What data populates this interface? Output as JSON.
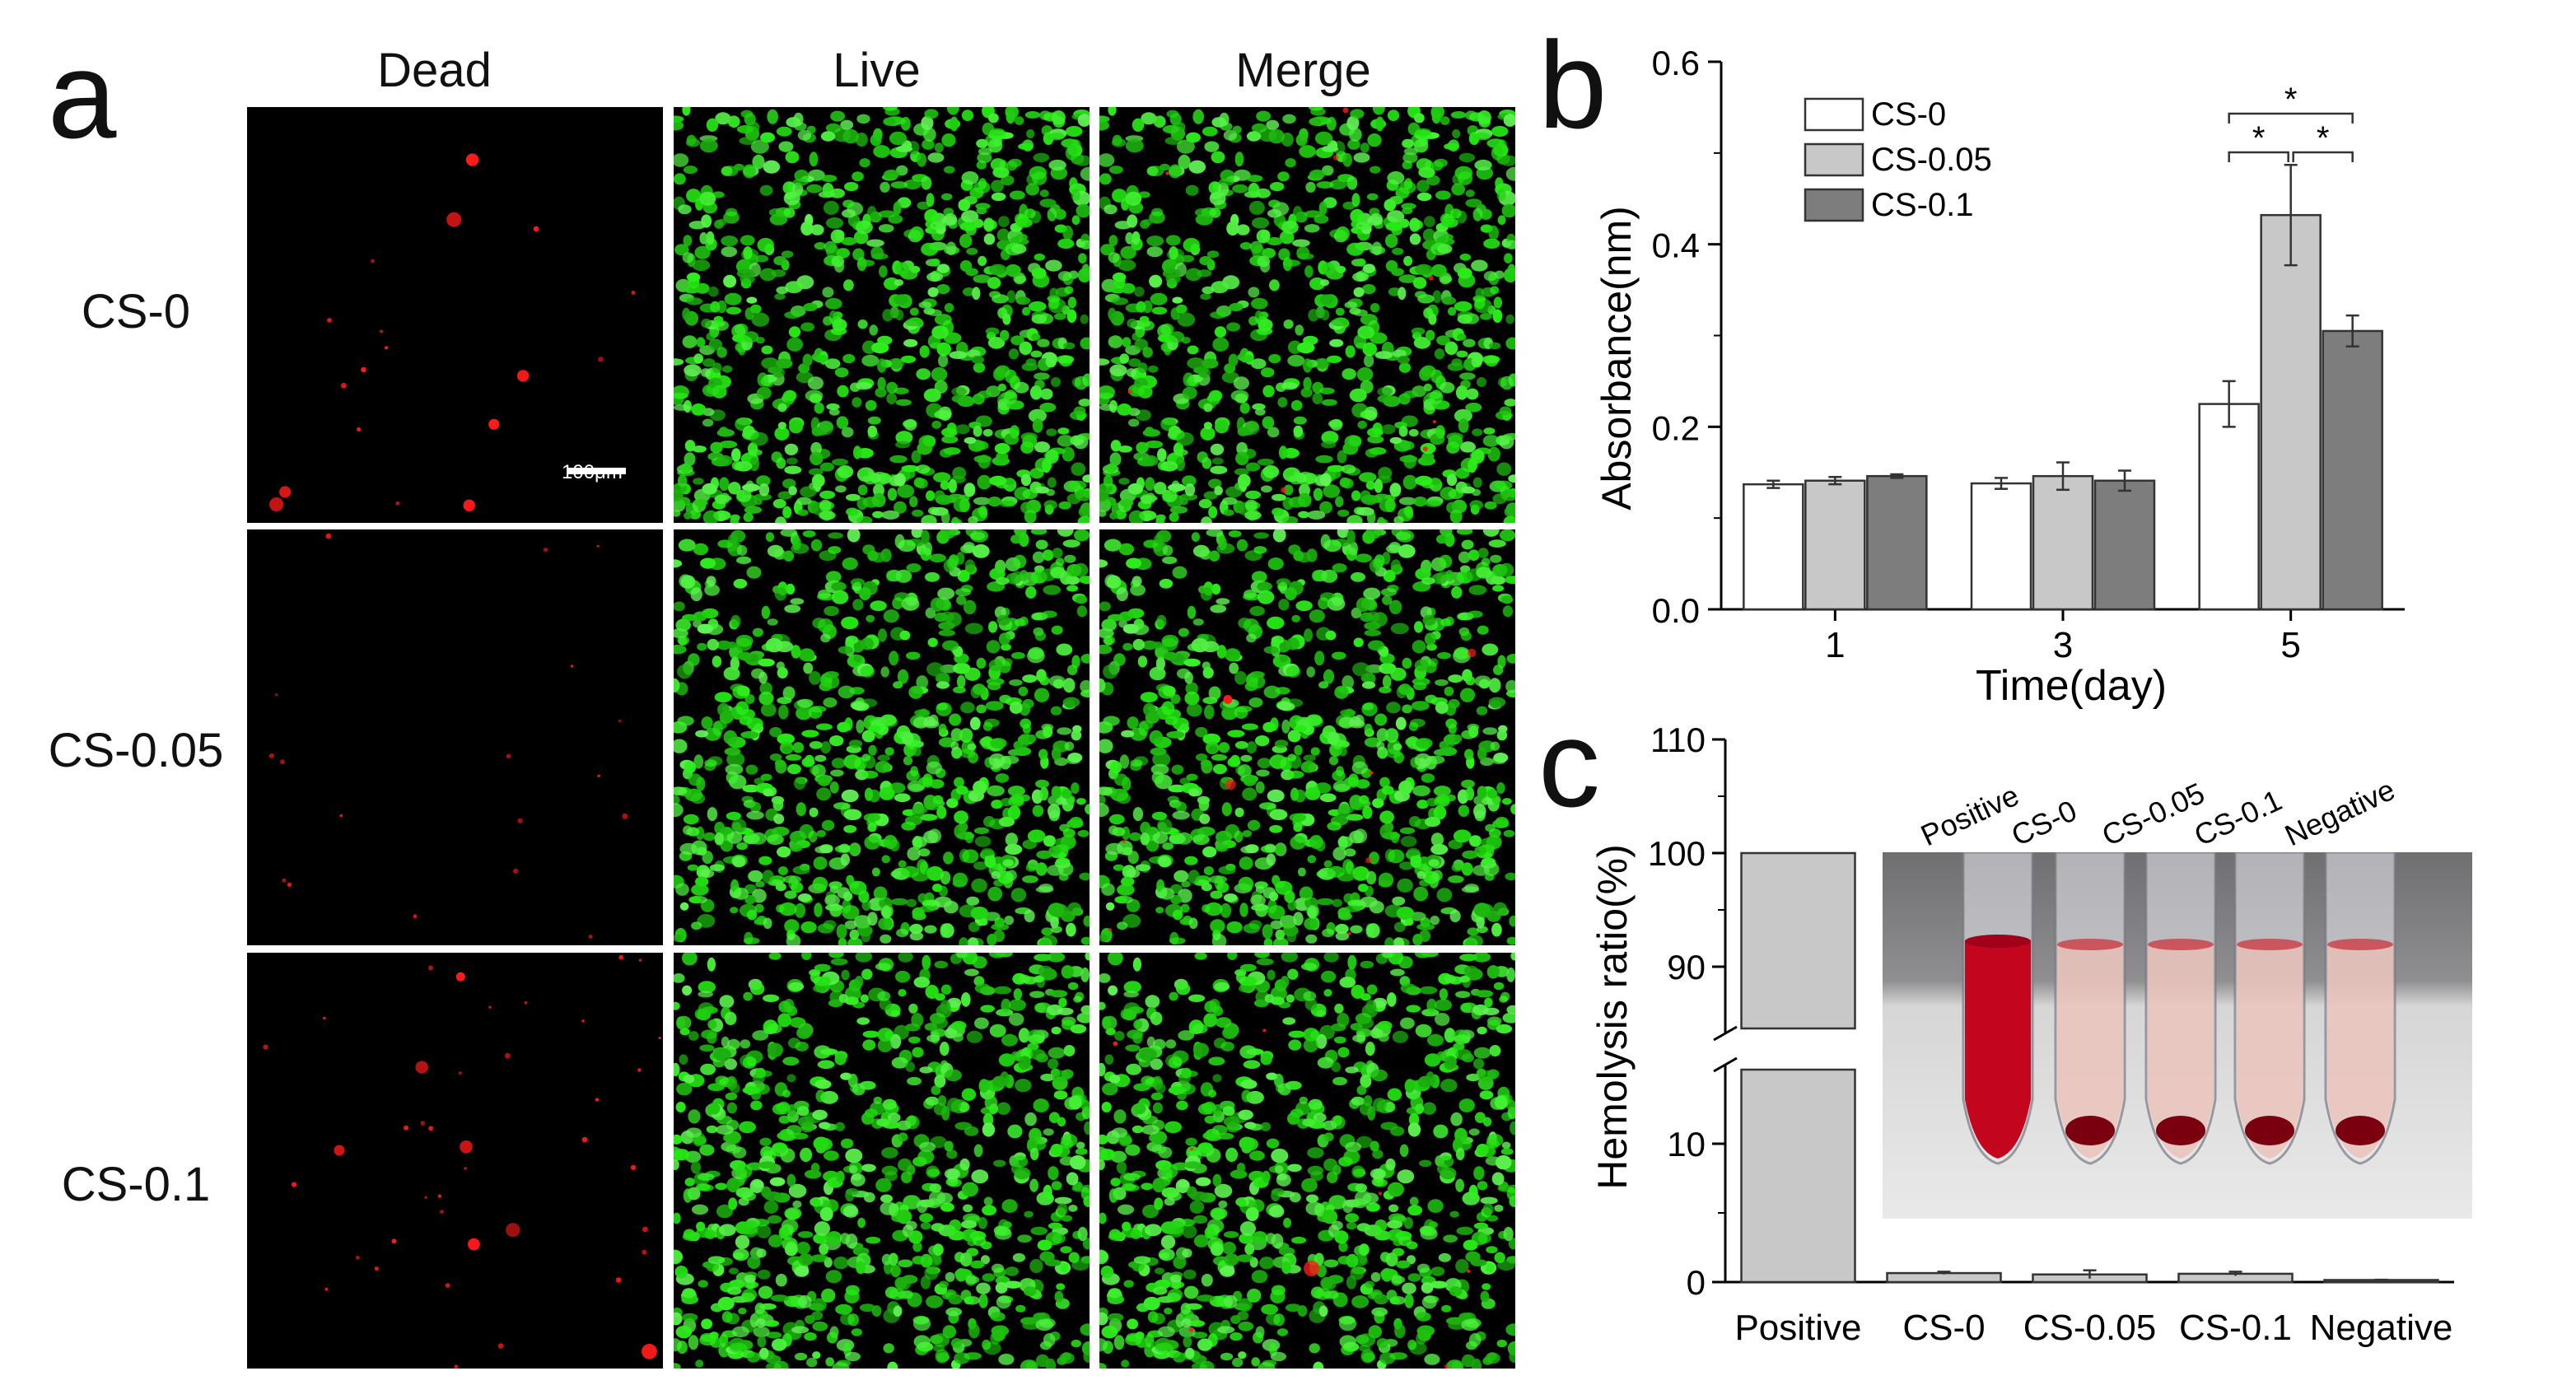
{
  "panel_labels": {
    "a": "a",
    "b": "b",
    "c": "c"
  },
  "panel_a": {
    "columns": [
      "Dead",
      "Live",
      "Merge"
    ],
    "rows": [
      "CS-0",
      "CS-0.05",
      "CS-0.1"
    ],
    "scale_bar": "100μm",
    "colors": {
      "dead": "#ff1a1a",
      "live": "#22d41a",
      "background": "#000000"
    }
  },
  "chart_data": [
    {
      "type": "bar",
      "panel": "b",
      "categories": [
        "1",
        "3",
        "5"
      ],
      "series": [
        {
          "name": "CS-0",
          "values": [
            0.137,
            0.138,
            0.225
          ],
          "errors": [
            0.004,
            0.006,
            0.025
          ],
          "color": "#ffffff"
        },
        {
          "name": "CS-0.05",
          "values": [
            0.141,
            0.146,
            0.432
          ],
          "errors": [
            0.004,
            0.015,
            0.055
          ],
          "color": "#c8c8c8"
        },
        {
          "name": "CS-0.1",
          "values": [
            0.146,
            0.141,
            0.305
          ],
          "errors": [
            0.002,
            0.011,
            0.017
          ],
          "color": "#7d7d7d"
        }
      ],
      "xlabel": "Time(day)",
      "ylabel": "Absorbance(nm)",
      "ylim": [
        0,
        0.6
      ],
      "yticks": [
        "0.0",
        "0.2",
        "0.4",
        "0.6"
      ],
      "legend": "top-left",
      "significance": [
        "*",
        "*",
        "*"
      ]
    },
    {
      "type": "bar",
      "panel": "c",
      "categories": [
        "Positive",
        "CS-0",
        "CS-0.05",
        "CS-0.1",
        "Negative"
      ],
      "values": [
        100,
        0.65,
        0.55,
        0.6,
        0.15
      ],
      "errors": [
        0,
        0.1,
        0.3,
        0.15,
        0.02
      ],
      "ylabel": "Hemolysis ratio(%)",
      "yticks": [
        "0",
        "10",
        "90",
        "100",
        "110"
      ],
      "axis_break": true,
      "color": "#c8c8c8",
      "inset_labels": [
        "Positive",
        "CS-0",
        "CS-0.05",
        "CS-0.1",
        "Negative"
      ]
    }
  ]
}
